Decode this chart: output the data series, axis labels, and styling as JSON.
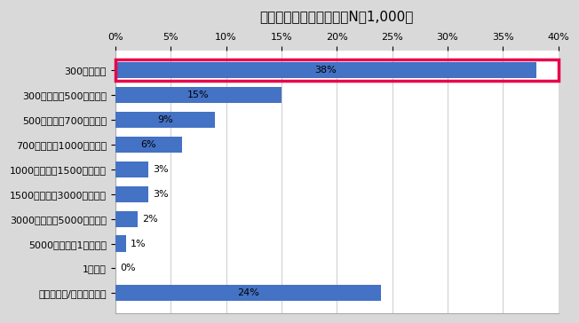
{
  "title": "年収別の回答者の内訳（N＝1,000）",
  "categories": [
    "300万円以下",
    "300万円超～500万円以下",
    "500万円超～700万円以下",
    "700万円超～1000万円以下",
    "1000万円超～1500万円以下",
    "1500万円超～3000万円以下",
    "3000万円超～5000万円以下",
    "5000万円超～1億円以下",
    "1億円超",
    "わからない/答えたくない"
  ],
  "values": [
    38,
    15,
    9,
    6,
    3,
    3,
    2,
    1,
    0,
    24
  ],
  "bar_color": "#4472C4",
  "highlight_index": 0,
  "highlight_color": "#E8004A",
  "xlim": [
    0,
    40
  ],
  "xticks": [
    0,
    5,
    10,
    15,
    20,
    25,
    30,
    35,
    40
  ],
  "background_color": "#FFFFFF",
  "title_fontsize": 11,
  "label_fontsize": 8,
  "tick_fontsize": 8,
  "bar_label_fontsize": 8,
  "figure_bg": "#D9D9D9"
}
